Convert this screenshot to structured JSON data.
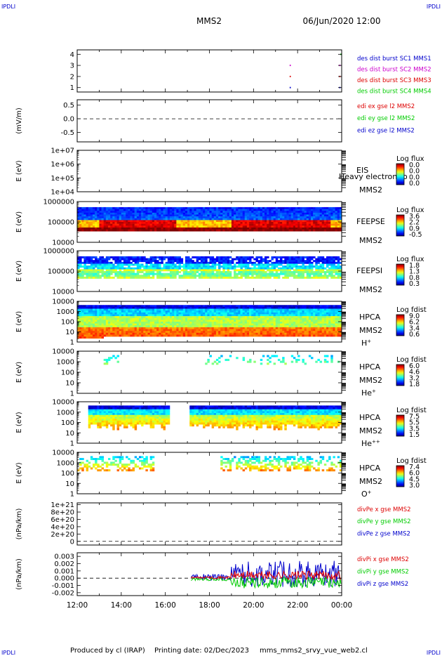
{
  "corner_label": "IPDLI",
  "header": {
    "mission": "MMS2",
    "datetime": "06/Jun/2020 12:00"
  },
  "footer": {
    "produced_by": "Produced by cl (IRAP)",
    "printing_date": "Printing date: 02/Dec/2023",
    "script_name": "mms_mms2_srvy_vue_web2.cl"
  },
  "colors": {
    "red": "#dd0000",
    "green": "#00cc00",
    "blue": "#0000cc",
    "magenta": "#cc00cc",
    "dashed": "#000000"
  },
  "chart_data": [
    {
      "type": "scatter",
      "yticks": [
        "4",
        "3",
        "2",
        "1"
      ],
      "ylim": [
        0.6,
        4.4
      ],
      "legend": [
        {
          "label": "des dist burst SC1 MMS1",
          "color": "#0000cc"
        },
        {
          "label": "des dist burst SC2 MMS2",
          "color": "#cc00cc"
        },
        {
          "label": "des dist burst SC3 MMS3",
          "color": "#dd0000"
        },
        {
          "label": "des dist burst SC4 MMS4",
          "color": "#00cc00"
        }
      ],
      "series": [
        {
          "name": "des dist burst SC1 MMS1",
          "x": [
            "21:40",
            "23:55"
          ],
          "y": [
            1,
            1
          ]
        },
        {
          "name": "des dist burst SC3 MMS3",
          "x": [
            "21:40",
            "23:55"
          ],
          "y": [
            2,
            2
          ]
        },
        {
          "name": "des dist burst SC2 MMS2",
          "x": [
            "21:40",
            "23:55"
          ],
          "y": [
            3,
            3
          ]
        },
        {
          "name": "des dist burst SC4 MMS4",
          "x": [
            "23:58"
          ],
          "y": [
            4
          ]
        }
      ]
    },
    {
      "type": "line",
      "ylabel": "(mV/m)",
      "yticks": [
        "0.5",
        "0.0",
        "-0.5"
      ],
      "ylim": [
        -0.85,
        0.7
      ],
      "zero_line": true,
      "legend": [
        {
          "label": "edi ex gse l2 MMS2",
          "color": "#dd0000"
        },
        {
          "label": "edi ey gse l2 MMS2",
          "color": "#00cc00"
        },
        {
          "label": "edi ez gse l2 MMS2",
          "color": "#0000cc"
        }
      ]
    },
    {
      "type": "heatmap",
      "ylabel": "E (eV)",
      "yticks": [
        "1e+07",
        "1e+06",
        "1e+05",
        "1e+04"
      ],
      "scale": "log",
      "instrument": [
        "EIS",
        "MMS2"
      ],
      "overlay_text": "Heavy electron to",
      "colorbar": {
        "title": "Log flux",
        "ticks": [
          "0.0",
          "0.0",
          "0.0",
          "0.0"
        ]
      }
    },
    {
      "type": "heatmap",
      "ylabel": "E (eV)",
      "yticks": [
        "1000000",
        "100000",
        "10000"
      ],
      "scale": "log",
      "instrument": [
        "FEEPSE",
        "MMS2"
      ],
      "colorbar": {
        "title": "Log flux",
        "ticks": [
          "3.6",
          "2.2",
          "0.9",
          "-0.5"
        ]
      }
    },
    {
      "type": "heatmap",
      "ylabel": "E (eV)",
      "yticks": [
        "1000000",
        "100000",
        "10000"
      ],
      "scale": "log",
      "instrument": [
        "FEEPSI",
        "MMS2"
      ],
      "colorbar": {
        "title": "Log flux",
        "ticks": [
          "1.8",
          "1.3",
          "0.8",
          "0.3"
        ]
      }
    },
    {
      "type": "heatmap",
      "ylabel": "E (eV)",
      "yticks": [
        "10000",
        "1000",
        "100",
        "10",
        "1"
      ],
      "scale": "log",
      "instrument": [
        "HPCA",
        "MMS2"
      ],
      "species": "H",
      "charge": "+",
      "colorbar": {
        "title": "Log fdist",
        "ticks": [
          "9.0",
          "6.2",
          "3.4",
          "0.6"
        ]
      }
    },
    {
      "type": "heatmap",
      "ylabel": "E (eV)",
      "yticks": [
        "10000",
        "1000",
        "100",
        "10",
        "1"
      ],
      "scale": "log",
      "instrument": [
        "HPCA",
        "MMS2"
      ],
      "species": "He",
      "charge": "+",
      "colorbar": {
        "title": "Log fdist",
        "ticks": [
          "6.0",
          "4.6",
          "3.2",
          "1.8"
        ]
      }
    },
    {
      "type": "heatmap",
      "ylabel": "E (eV)",
      "yticks": [
        "10000",
        "1000",
        "100",
        "10",
        "1"
      ],
      "scale": "log",
      "instrument": [
        "HPCA",
        "MMS2"
      ],
      "species": "He",
      "charge": "++",
      "colorbar": {
        "title": "Log fdist",
        "ticks": [
          "7.5",
          "5.5",
          "3.5",
          "1.5"
        ]
      }
    },
    {
      "type": "heatmap",
      "ylabel": "E (eV)",
      "yticks": [
        "10000",
        "1000",
        "100",
        "10",
        "1"
      ],
      "scale": "log",
      "instrument": [
        "HPCA",
        "MMS2"
      ],
      "species": "O",
      "charge": "+",
      "colorbar": {
        "title": "Log fdist",
        "ticks": [
          "7.4",
          "6.0",
          "4.5",
          "3.0"
        ]
      }
    },
    {
      "type": "line",
      "ylabel": "(nPa/km)",
      "yticks": [
        "1e+21",
        "8e+20",
        "6e+20",
        "4e+20",
        "2e+20",
        "0"
      ],
      "ylim": [
        -0.1,
        1.05
      ],
      "zero_line": true,
      "legend": [
        {
          "label": "divPe x gse MMS2",
          "color": "#dd0000"
        },
        {
          "label": "divPe y gse MMS2",
          "color": "#00cc00"
        },
        {
          "label": "divPe z gse MMS2",
          "color": "#0000cc"
        }
      ]
    },
    {
      "type": "line",
      "ylabel": "(nPa/km)",
      "yticks": [
        "0.003",
        "0.002",
        "0.001",
        "0.000",
        "-0.001",
        "-0.002"
      ],
      "ylim": [
        -0.0024,
        0.0035
      ],
      "zero_line": true,
      "data_start": "17:10",
      "legend": [
        {
          "label": "divPi x gse MMS2",
          "color": "#dd0000"
        },
        {
          "label": "divPi y gse MMS2",
          "color": "#00cc00"
        },
        {
          "label": "divPi z gse MMS2",
          "color": "#0000cc"
        }
      ]
    }
  ],
  "xaxis": {
    "tick_labels": [
      "12:00",
      "14:00",
      "16:00",
      "18:00",
      "20:00",
      "22:00",
      "00:00"
    ]
  }
}
